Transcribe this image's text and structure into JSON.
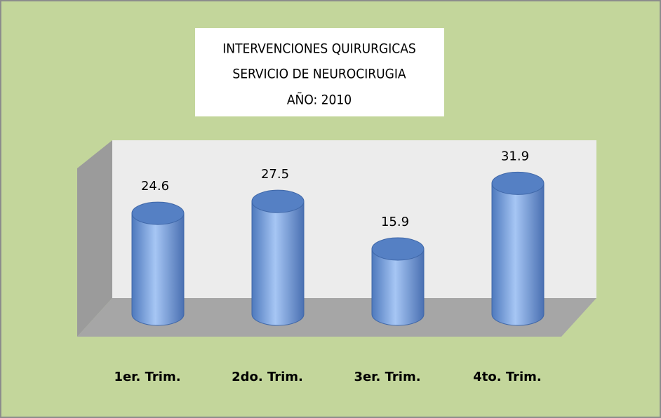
{
  "chart_data": {
    "type": "bar",
    "title": [
      "INTERVENCIONES QUIRURGICAS",
      "SERVICIO DE NEUROCIRUGIA",
      "AÑO: 2010"
    ],
    "categories": [
      "1er. Trim.",
      "2do. Trim.",
      "3er. Trim.",
      "4to. Trim."
    ],
    "values": [
      24.6,
      27.5,
      15.9,
      31.9
    ],
    "color": "#6f97d6"
  }
}
